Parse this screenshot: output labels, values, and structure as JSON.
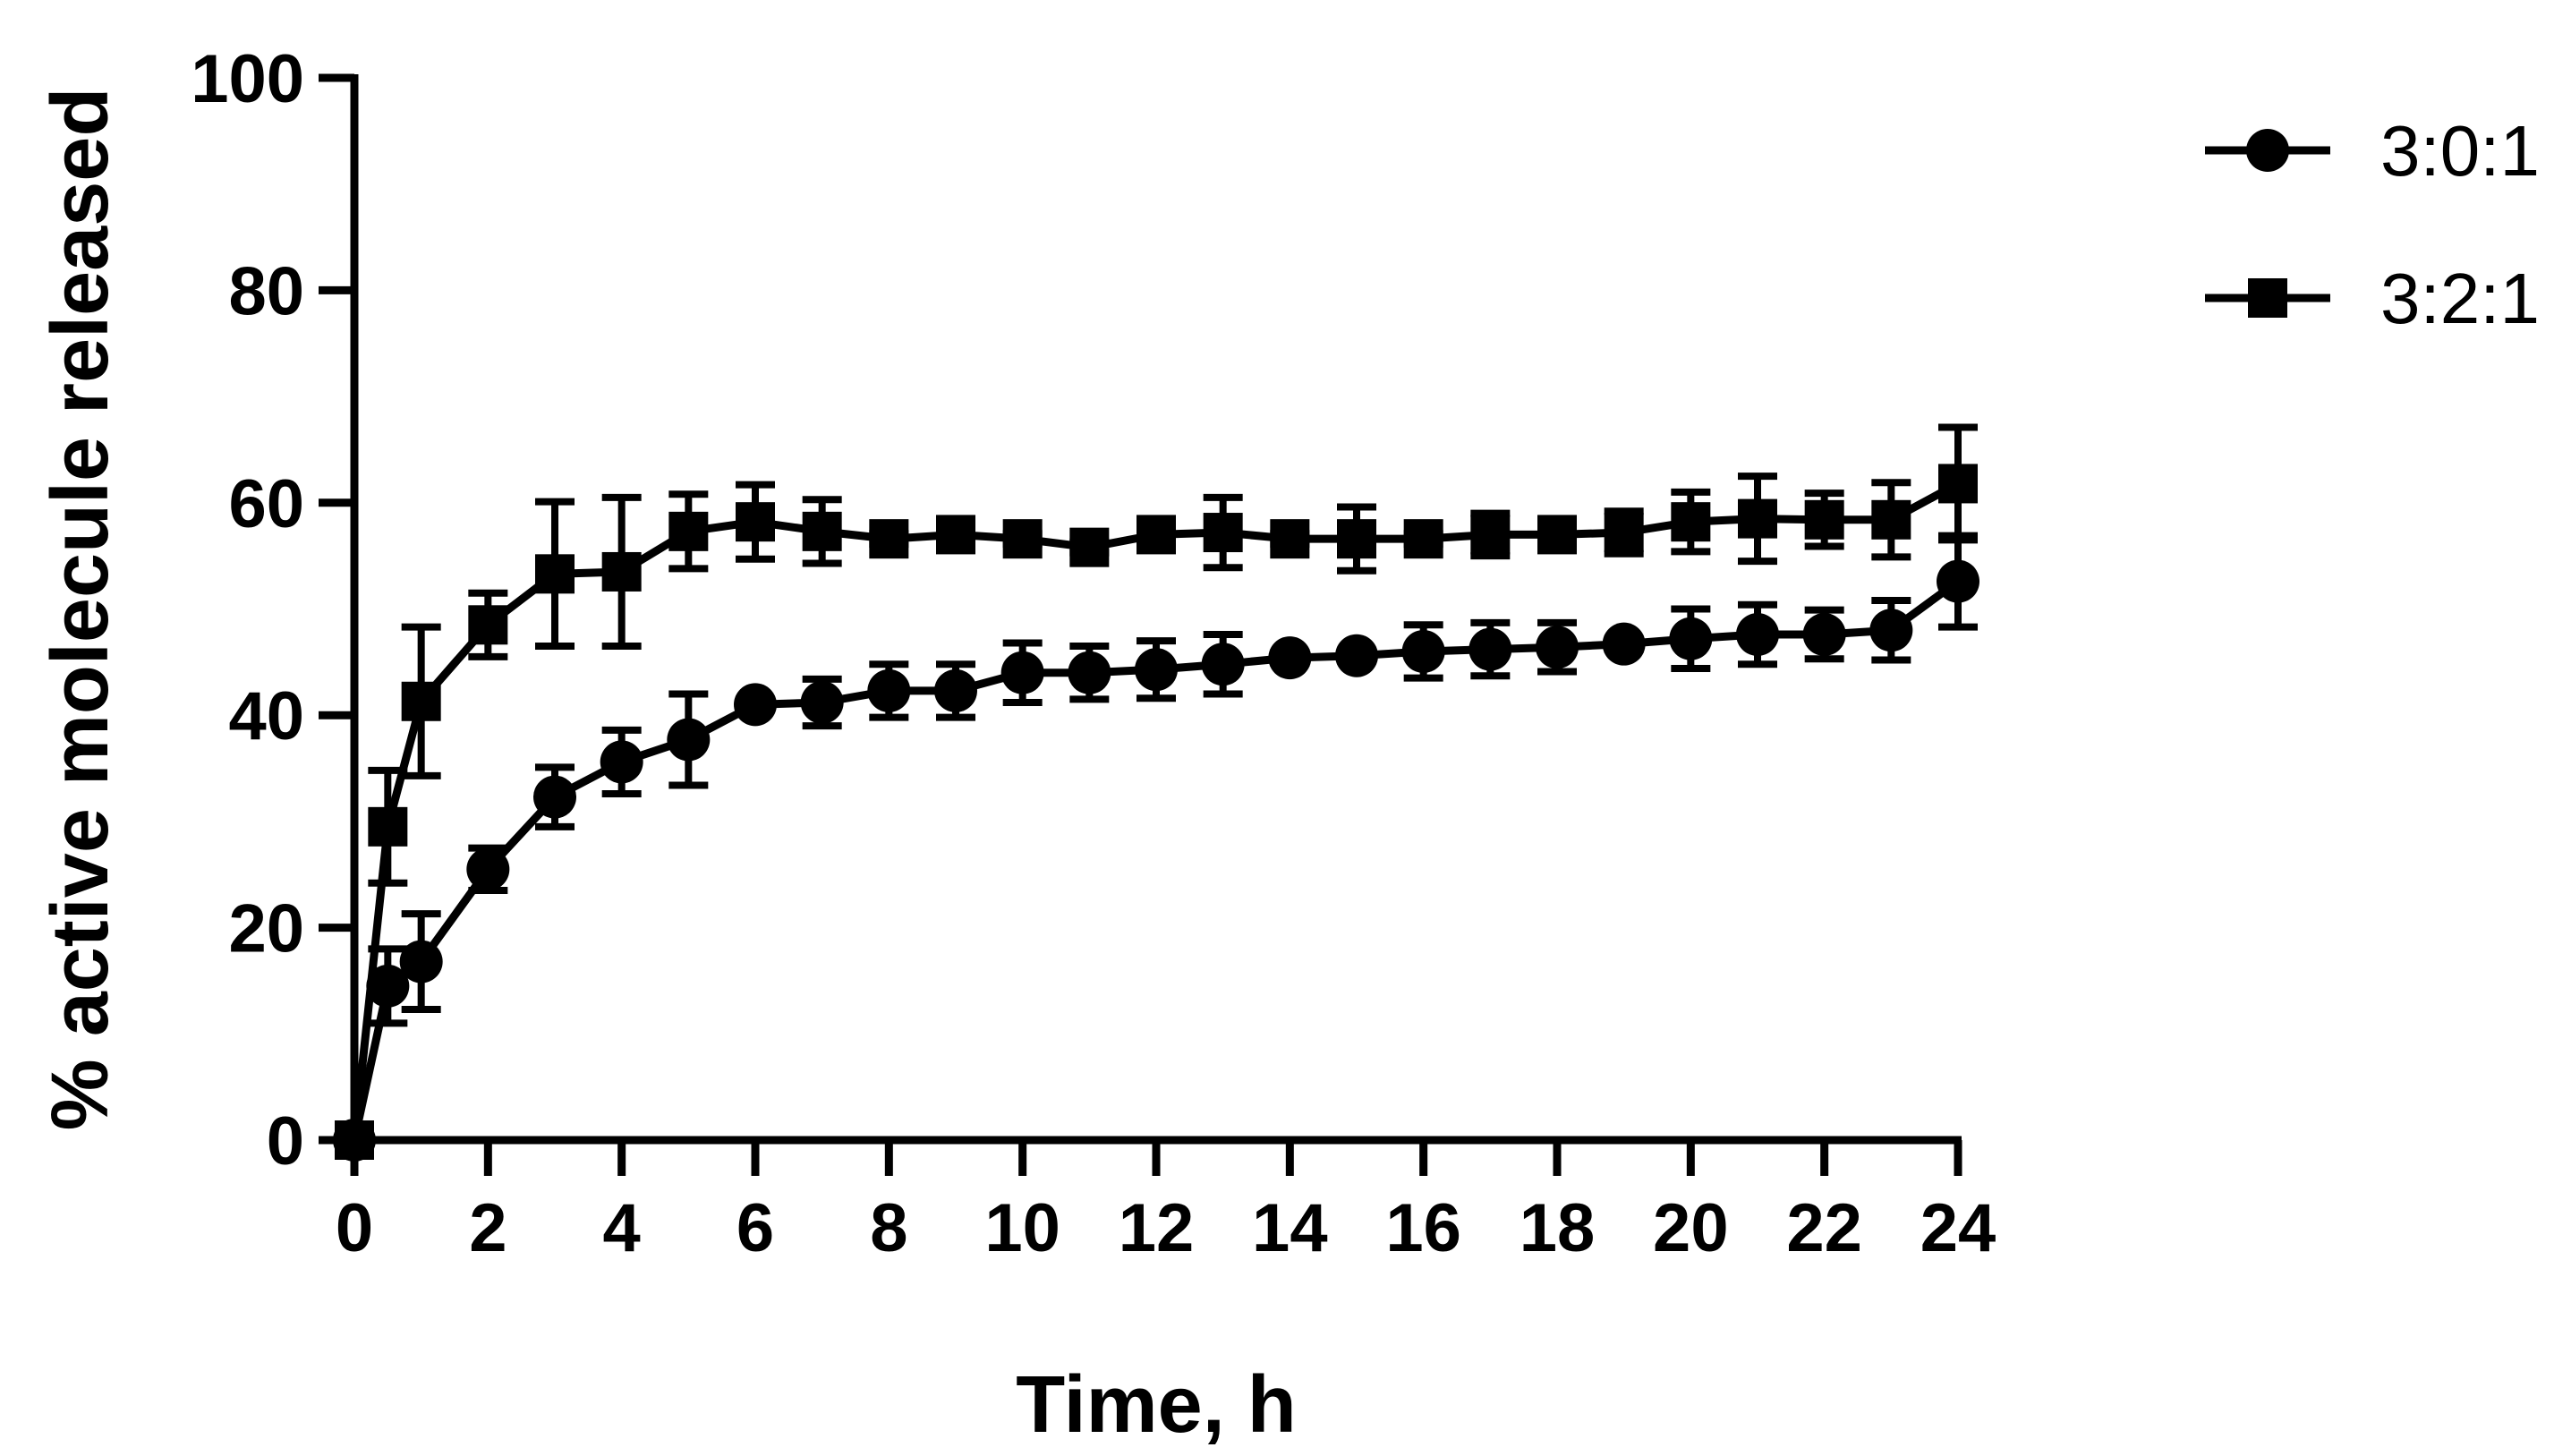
{
  "chart_data": {
    "type": "line",
    "title": "",
    "xlabel": "Time, h",
    "ylabel": "% active molecule released",
    "xlim": [
      0,
      24
    ],
    "ylim": [
      0,
      100
    ],
    "xticks": [
      0,
      2,
      4,
      6,
      8,
      10,
      12,
      14,
      16,
      18,
      20,
      22,
      24
    ],
    "yticks": [
      0,
      20,
      40,
      60,
      80,
      100
    ],
    "grid": false,
    "legend_position": "top-right",
    "series": [
      {
        "name": "3:0:1",
        "marker": "circle",
        "color": "#000000",
        "x": [
          0,
          0.5,
          1,
          2,
          3,
          4,
          5,
          6,
          7,
          8,
          9,
          10,
          11,
          12,
          13,
          14,
          15,
          16,
          17,
          18,
          19,
          20,
          21,
          22,
          23,
          24
        ],
        "y": [
          0,
          14.5,
          16.8,
          25.5,
          32.3,
          35.6,
          37.7,
          41.0,
          41.2,
          42.3,
          42.3,
          44.0,
          44.0,
          44.3,
          44.8,
          45.4,
          45.6,
          46.0,
          46.2,
          46.4,
          46.7,
          47.2,
          47.6,
          47.6,
          48.0,
          52.6
        ],
        "error": [
          0,
          3.5,
          4.5,
          2.0,
          2.8,
          3.0,
          4.3,
          0.5,
          2.2,
          2.5,
          2.5,
          2.8,
          2.5,
          2.7,
          2.8,
          0.5,
          0.5,
          2.5,
          2.5,
          2.3,
          0.5,
          2.8,
          2.8,
          2.3,
          2.8,
          4.3
        ]
      },
      {
        "name": "3:2:1",
        "marker": "square",
        "color": "#000000",
        "x": [
          0,
          0.5,
          1,
          2,
          3,
          4,
          5,
          6,
          7,
          8,
          9,
          10,
          11,
          12,
          13,
          14,
          15,
          16,
          17,
          18,
          19,
          20,
          21,
          22,
          23,
          24
        ],
        "y": [
          0,
          29.5,
          41.3,
          48.5,
          53.3,
          53.5,
          57.3,
          58.2,
          57.3,
          56.6,
          57.0,
          56.6,
          55.8,
          57.0,
          57.2,
          56.6,
          56.6,
          56.6,
          57.0,
          57.0,
          57.2,
          58.2,
          58.5,
          58.4,
          58.4,
          61.8
        ],
        "error": [
          0,
          5.3,
          7.0,
          3.0,
          6.8,
          7.0,
          3.5,
          3.5,
          3.0,
          0.5,
          0.5,
          0.5,
          0.5,
          0.5,
          3.3,
          0.5,
          3.0,
          0.5,
          2.0,
          0.5,
          2.0,
          2.8,
          4.0,
          2.5,
          3.5,
          5.3
        ]
      }
    ]
  }
}
